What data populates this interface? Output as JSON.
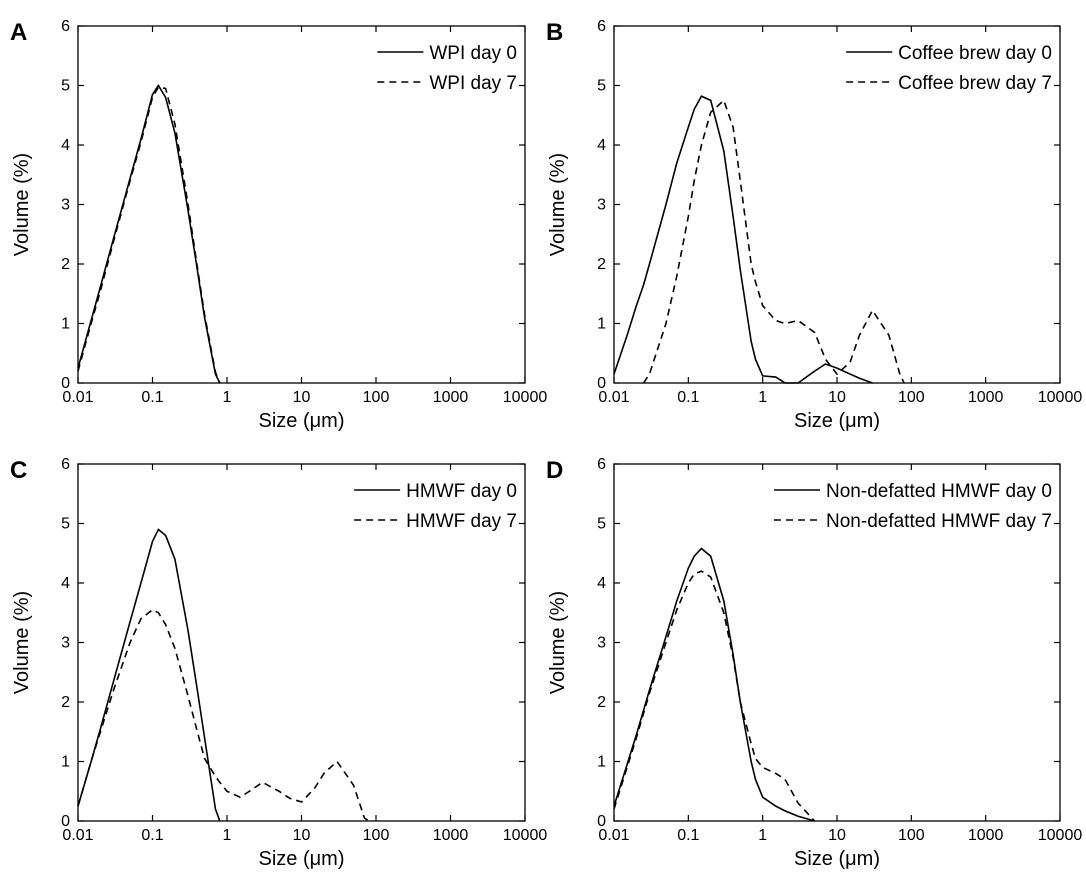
{
  "chart_data": [
    {
      "type": "line",
      "panel_label": "A",
      "xlabel": "Size (μm)",
      "ylabel": "Volume (%)",
      "log_x": true,
      "legend": "upper right",
      "xlim": [
        0.01,
        10000
      ],
      "xticks": [
        0.01,
        0.1,
        1,
        10,
        100,
        1000,
        10000
      ],
      "ylim": [
        0,
        6
      ],
      "yticks": [
        0,
        1,
        2,
        3,
        4,
        5,
        6
      ],
      "x": [
        0.01,
        0.015,
        0.02,
        0.03,
        0.05,
        0.07,
        0.1,
        0.12,
        0.15,
        0.2,
        0.3,
        0.4,
        0.5,
        0.7,
        0.8
      ],
      "series": [
        {
          "name": "WPI day 0",
          "color": "#000000",
          "linestyle": "solid",
          "values": [
            0.25,
            1.05,
            1.62,
            2.43,
            3.44,
            4.1,
            4.85,
            5.0,
            4.8,
            4.2,
            2.9,
            1.9,
            1.1,
            0.15,
            0
          ]
        },
        {
          "name": "WPI day 7",
          "color": "#000000",
          "linestyle": "dashed",
          "values": [
            0.2,
            1.0,
            1.55,
            2.38,
            3.4,
            4.05,
            4.8,
            4.97,
            4.95,
            4.35,
            3.0,
            1.95,
            1.15,
            0.18,
            0
          ]
        }
      ]
    },
    {
      "type": "line",
      "panel_label": "B",
      "xlabel": "Size (μm)",
      "ylabel": "Volume (%)",
      "log_x": true,
      "legend": "upper right",
      "xlim": [
        0.01,
        10000
      ],
      "xticks": [
        0.01,
        0.1,
        1,
        10,
        100,
        1000,
        10000
      ],
      "ylim": [
        0,
        6
      ],
      "yticks": [
        0,
        1,
        2,
        3,
        4,
        5,
        6
      ],
      "x": [
        0.01,
        0.015,
        0.02,
        0.025,
        0.03,
        0.05,
        0.07,
        0.1,
        0.12,
        0.15,
        0.2,
        0.3,
        0.4,
        0.5,
        0.7,
        0.8,
        1,
        1.5,
        2,
        3,
        5,
        7,
        10,
        15,
        20,
        30,
        50,
        70,
        80
      ],
      "series": [
        {
          "name": "Coffee brew day 0",
          "color": "#000000",
          "linestyle": "solid",
          "values": [
            0.15,
            0.8,
            1.3,
            1.65,
            2.0,
            3.0,
            3.7,
            4.3,
            4.6,
            4.82,
            4.75,
            3.9,
            2.8,
            1.9,
            0.7,
            0.4,
            0.12,
            0.1,
            0,
            0,
            0.2,
            0.32,
            0.25,
            0.15,
            0.08,
            0,
            null,
            null,
            null
          ]
        },
        {
          "name": "Coffee brew day 7",
          "color": "#000000",
          "linestyle": "dashed",
          "values": [
            null,
            null,
            null,
            0,
            0.15,
            1.0,
            1.8,
            2.8,
            3.4,
            4.0,
            4.55,
            4.75,
            4.3,
            3.4,
            2.0,
            1.7,
            1.3,
            1.05,
            1.0,
            1.05,
            0.85,
            0.4,
            0.15,
            0.35,
            0.8,
            1.22,
            0.8,
            0.15,
            0
          ]
        }
      ]
    },
    {
      "type": "line",
      "panel_label": "C",
      "xlabel": "Size (μm)",
      "ylabel": "Volume (%)",
      "log_x": true,
      "legend": "upper right",
      "xlim": [
        0.01,
        10000
      ],
      "xticks": [
        0.01,
        0.1,
        1,
        10,
        100,
        1000,
        10000
      ],
      "ylim": [
        0,
        6
      ],
      "yticks": [
        0,
        1,
        2,
        3,
        4,
        5,
        6
      ],
      "x": [
        0.01,
        0.015,
        0.02,
        0.03,
        0.05,
        0.07,
        0.1,
        0.12,
        0.15,
        0.2,
        0.3,
        0.4,
        0.5,
        0.7,
        0.8,
        1,
        1.5,
        2,
        3,
        5,
        7,
        10,
        15,
        20,
        30,
        50,
        70,
        80
      ],
      "series": [
        {
          "name": "HMWF day 0",
          "color": "#000000",
          "linestyle": "solid",
          "values": [
            0.25,
            1.0,
            1.55,
            2.35,
            3.35,
            4.0,
            4.7,
            4.9,
            4.8,
            4.4,
            3.2,
            2.2,
            1.4,
            0.2,
            0,
            null,
            null,
            null,
            null,
            null,
            null,
            null,
            null,
            null,
            null,
            null,
            null,
            null
          ]
        },
        {
          "name": "HMWF day 7",
          "color": "#000000",
          "linestyle": "dashed",
          "values": [
            0.25,
            1.0,
            1.5,
            2.2,
            3.0,
            3.4,
            3.55,
            3.5,
            3.3,
            2.9,
            2.1,
            1.5,
            1.05,
            0.75,
            0.65,
            0.5,
            0.4,
            0.5,
            0.65,
            0.5,
            0.38,
            0.32,
            0.55,
            0.8,
            1.0,
            0.6,
            0.05,
            0
          ]
        }
      ]
    },
    {
      "type": "line",
      "panel_label": "D",
      "xlabel": "Size (μm)",
      "ylabel": "Volume (%)",
      "log_x": true,
      "legend": "upper right",
      "xlim": [
        0.01,
        10000
      ],
      "xticks": [
        0.01,
        0.1,
        1,
        10,
        100,
        1000,
        10000
      ],
      "ylim": [
        0,
        6
      ],
      "yticks": [
        0,
        1,
        2,
        3,
        4,
        5,
        6
      ],
      "x": [
        0.01,
        0.015,
        0.02,
        0.03,
        0.05,
        0.07,
        0.1,
        0.12,
        0.15,
        0.2,
        0.3,
        0.4,
        0.5,
        0.7,
        0.8,
        1,
        1.5,
        2,
        3,
        5
      ],
      "series": [
        {
          "name": "Non-defatted HMWF day 0",
          "color": "#000000",
          "linestyle": "solid",
          "values": [
            0.25,
            0.95,
            1.45,
            2.2,
            3.1,
            3.7,
            4.25,
            4.45,
            4.58,
            4.45,
            3.7,
            2.8,
            2.0,
            1.0,
            0.7,
            0.4,
            0.25,
            0.17,
            0.08,
            0
          ]
        },
        {
          "name": "Non-defatted HMWF day 7",
          "color": "#000000",
          "linestyle": "dashed",
          "values": [
            0.2,
            0.9,
            1.4,
            2.15,
            3.0,
            3.55,
            4.0,
            4.15,
            4.2,
            4.1,
            3.5,
            2.75,
            2.0,
            1.3,
            1.05,
            0.9,
            0.8,
            0.7,
            0.3,
            0
          ]
        }
      ]
    }
  ]
}
